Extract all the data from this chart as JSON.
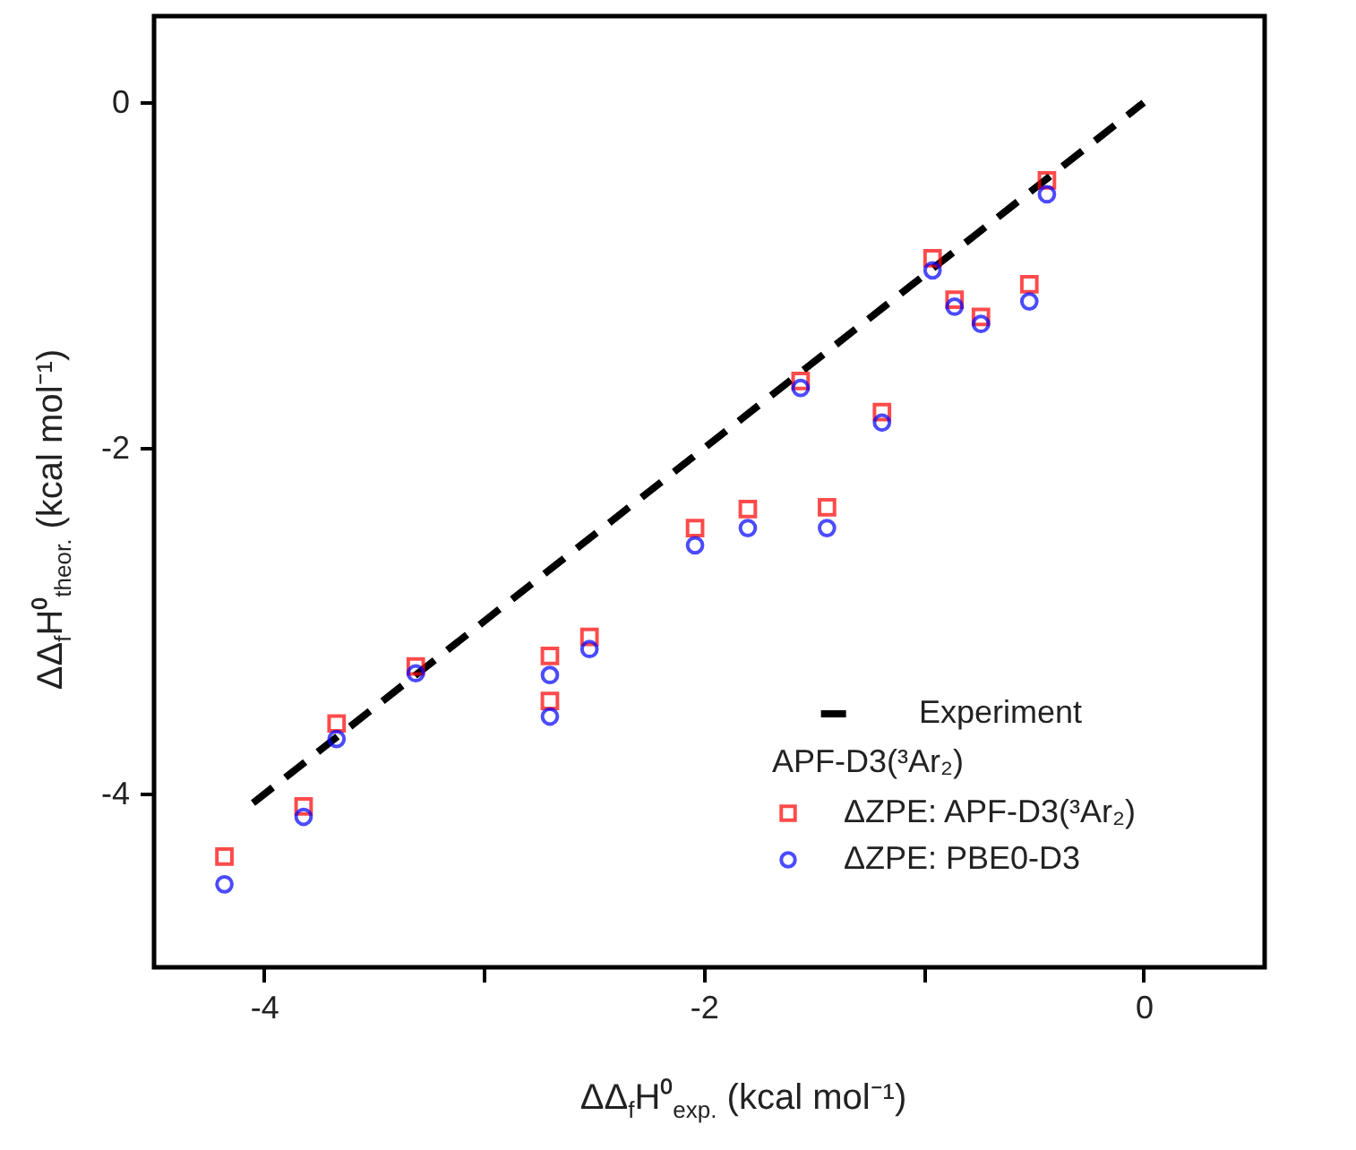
{
  "chart_data": {
    "type": "scatter",
    "xlabel": "ΔΔ$_{f}$H⁰$_{exp.}$ (kcal mol⁻¹)",
    "ylabel": "ΔΔ$_{f}$H⁰$_{theor.}$ (kcal mol⁻¹)",
    "legend_title": "APF-D3(³Ar₂)",
    "legend": "bottom right",
    "x": [
      -4.18,
      -3.82,
      -3.67,
      -3.31,
      -2.7,
      -2.7,
      -2.52,
      -2.04,
      -1.8,
      -1.56,
      -1.44,
      -1.19,
      -0.96,
      -0.86,
      -0.74,
      -0.52,
      -0.44
    ],
    "series": [
      {
        "name": "Experiment",
        "type": "line",
        "color": "#000000",
        "line_style": "dashed",
        "x": [
          -4.05,
          0
        ],
        "values": [
          -4.05,
          0
        ]
      },
      {
        "name": "ΔZPE: APF-D3(³Ar₂)",
        "marker": "square",
        "color": "#ff0000",
        "values": [
          -4.36,
          -4.07,
          -3.59,
          -3.26,
          -3.2,
          -3.46,
          -3.09,
          -2.46,
          -2.35,
          -1.61,
          -2.34,
          -1.79,
          -0.9,
          -1.14,
          -1.24,
          -1.05,
          -0.45
        ]
      },
      {
        "name": "ΔZPE: PBE0-D3",
        "marker": "circle",
        "color": "#0000ff",
        "values": [
          -4.52,
          -4.13,
          -3.68,
          -3.3,
          -3.31,
          -3.55,
          -3.16,
          -2.56,
          -2.46,
          -1.65,
          -2.46,
          -1.85,
          -0.97,
          -1.18,
          -1.28,
          -1.15,
          -0.53
        ]
      }
    ],
    "xlim": [
      -4.5,
      0.55
    ],
    "ylim": [
      -5,
      0.5
    ],
    "xticks": [
      -4,
      {
        "value": -3,
        "label": null
      },
      -2,
      {
        "value": -1,
        "label": null
      },
      0
    ],
    "yticks": [
      -4,
      -2,
      0
    ],
    "grid": false
  }
}
